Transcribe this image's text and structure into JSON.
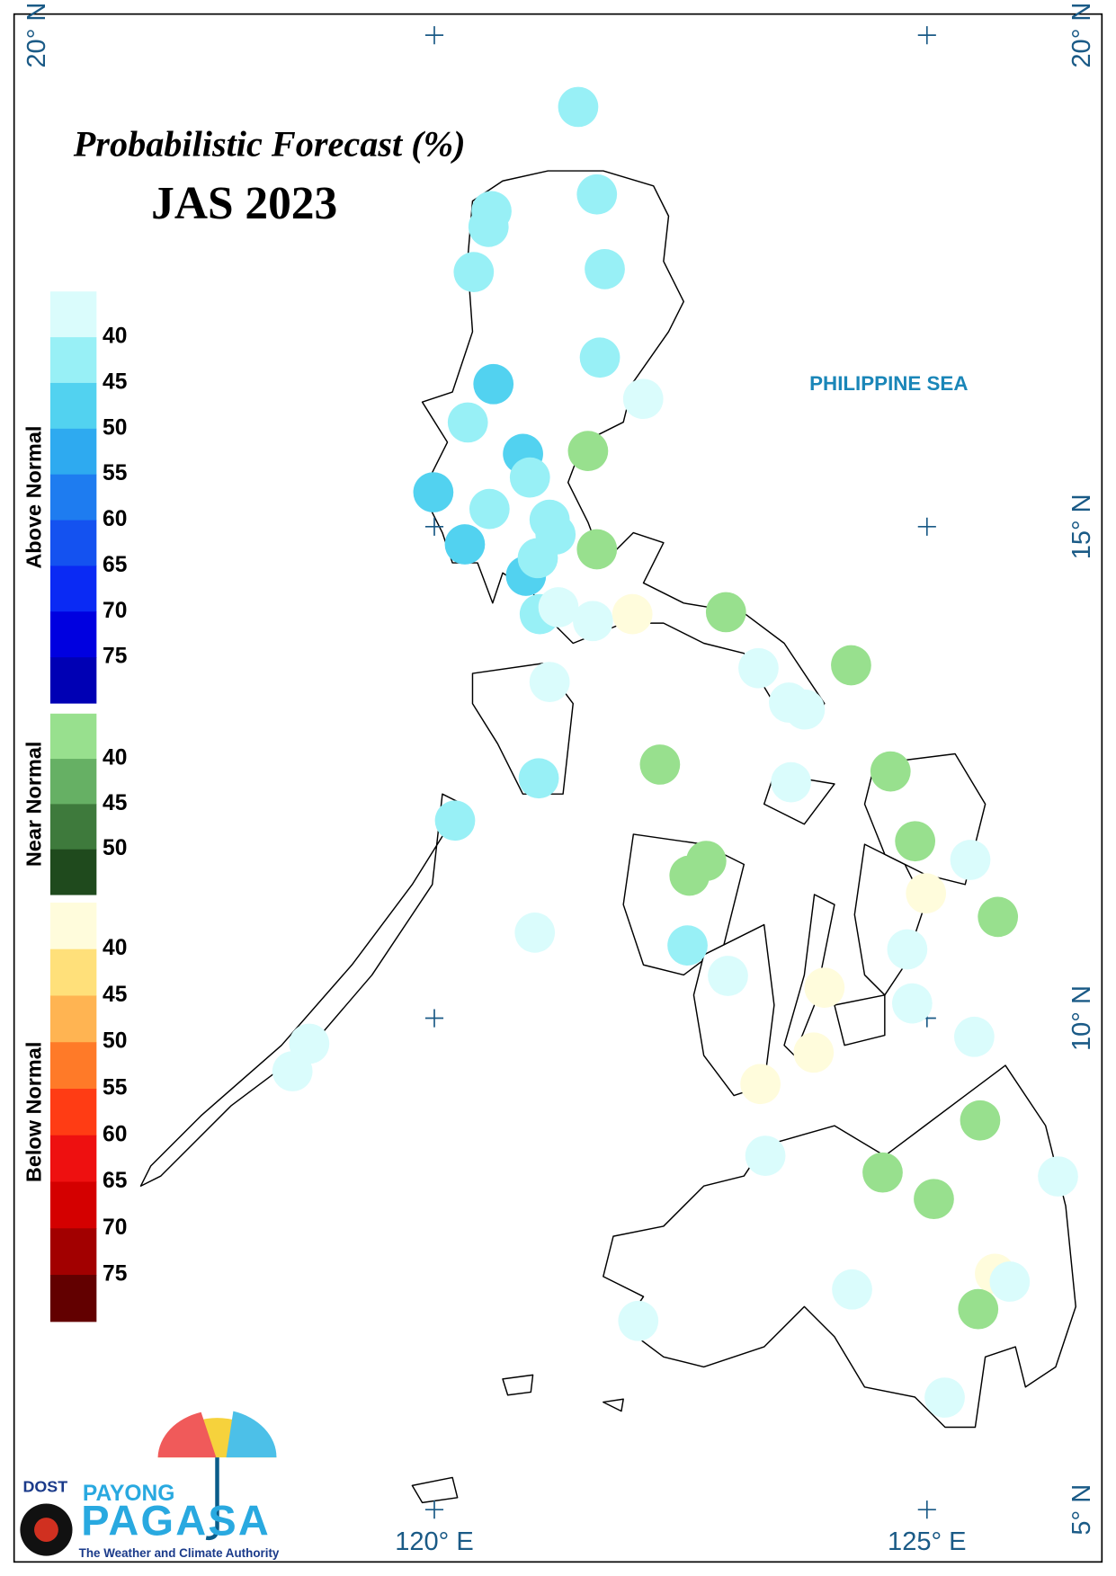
{
  "title": "Probabilistic Forecast (%)",
  "subtitle": "JAS 2023",
  "sea_label": "PHILIPPINE SEA",
  "map": {
    "lon_ticks": [
      {
        "value": 120,
        "label": "120° E"
      },
      {
        "value": 125,
        "label": "125° E"
      }
    ],
    "lat_ticks": [
      {
        "value": 20,
        "label": "20° N"
      },
      {
        "value": 15,
        "label": "15° N"
      },
      {
        "value": 10,
        "label": "10° N"
      },
      {
        "value": 5,
        "label": "5° N"
      }
    ],
    "left_lat_ticks": [
      {
        "value": 20,
        "label": "20° N"
      }
    ],
    "stations": [
      {
        "lon": 121.46,
        "lat": 19.27,
        "color": "#98f0f6"
      },
      {
        "lon": 121.65,
        "lat": 18.38,
        "color": "#98f0f6"
      },
      {
        "lon": 120.58,
        "lat": 18.21,
        "color": "#98f0f6"
      },
      {
        "lon": 120.55,
        "lat": 18.05,
        "color": "#98f0f6"
      },
      {
        "lon": 120.4,
        "lat": 17.59,
        "color": "#98f0f6"
      },
      {
        "lon": 121.73,
        "lat": 17.62,
        "color": "#98f0f6"
      },
      {
        "lon": 121.68,
        "lat": 16.72,
        "color": "#98f0f6"
      },
      {
        "lon": 120.6,
        "lat": 16.45,
        "color": "#52d2f0"
      },
      {
        "lon": 122.12,
        "lat": 16.3,
        "color": "#dafcfc"
      },
      {
        "lon": 120.34,
        "lat": 16.06,
        "color": "#98f0f6"
      },
      {
        "lon": 121.56,
        "lat": 15.77,
        "color": "#98e08e"
      },
      {
        "lon": 120.9,
        "lat": 15.74,
        "color": "#52d2f0"
      },
      {
        "lon": 120.97,
        "lat": 15.5,
        "color": "#98f0f6"
      },
      {
        "lon": 119.99,
        "lat": 15.35,
        "color": "#52d2f0"
      },
      {
        "lon": 120.56,
        "lat": 15.18,
        "color": "#98f0f6"
      },
      {
        "lon": 121.17,
        "lat": 15.07,
        "color": "#98f0f6"
      },
      {
        "lon": 121.23,
        "lat": 14.92,
        "color": "#98f0f6"
      },
      {
        "lon": 121.65,
        "lat": 14.77,
        "color": "#98e08e"
      },
      {
        "lon": 120.31,
        "lat": 14.82,
        "color": "#52d2f0"
      },
      {
        "lon": 120.93,
        "lat": 14.5,
        "color": "#52d2f0"
      },
      {
        "lon": 121.05,
        "lat": 14.68,
        "color": "#98f0f6"
      },
      {
        "lon": 121.07,
        "lat": 14.11,
        "color": "#98f0f6"
      },
      {
        "lon": 121.26,
        "lat": 14.18,
        "color": "#dafcfc"
      },
      {
        "lon": 121.61,
        "lat": 14.04,
        "color": "#dafcfc"
      },
      {
        "lon": 122.01,
        "lat": 14.11,
        "color": "#fffcdc"
      },
      {
        "lon": 122.96,
        "lat": 14.13,
        "color": "#98e08e"
      },
      {
        "lon": 124.23,
        "lat": 13.59,
        "color": "#98e08e"
      },
      {
        "lon": 123.29,
        "lat": 13.56,
        "color": "#dafcfc"
      },
      {
        "lon": 121.17,
        "lat": 13.42,
        "color": "#dafcfc"
      },
      {
        "lon": 123.6,
        "lat": 13.21,
        "color": "#dafcfc"
      },
      {
        "lon": 123.76,
        "lat": 13.14,
        "color": "#dafcfc"
      },
      {
        "lon": 122.29,
        "lat": 12.58,
        "color": "#98e08e"
      },
      {
        "lon": 124.63,
        "lat": 12.51,
        "color": "#98e08e"
      },
      {
        "lon": 121.06,
        "lat": 12.44,
        "color": "#98f0f6"
      },
      {
        "lon": 123.62,
        "lat": 12.4,
        "color": "#dafcfc"
      },
      {
        "lon": 120.21,
        "lat": 12.01,
        "color": "#98f0f6"
      },
      {
        "lon": 124.88,
        "lat": 11.8,
        "color": "#98e08e"
      },
      {
        "lon": 122.76,
        "lat": 11.6,
        "color": "#98e08e"
      },
      {
        "lon": 122.59,
        "lat": 11.45,
        "color": "#98e08e"
      },
      {
        "lon": 125.44,
        "lat": 11.61,
        "color": "#dafcfc"
      },
      {
        "lon": 124.99,
        "lat": 11.27,
        "color": "#fffcdc"
      },
      {
        "lon": 125.72,
        "lat": 11.03,
        "color": "#98e08e"
      },
      {
        "lon": 121.02,
        "lat": 10.87,
        "color": "#dafcfc"
      },
      {
        "lon": 122.57,
        "lat": 10.74,
        "color": "#98f0f6"
      },
      {
        "lon": 124.8,
        "lat": 10.7,
        "color": "#dafcfc"
      },
      {
        "lon": 122.98,
        "lat": 10.43,
        "color": "#dafcfc"
      },
      {
        "lon": 123.96,
        "lat": 10.31,
        "color": "#fffcdc"
      },
      {
        "lon": 124.85,
        "lat": 10.15,
        "color": "#dafcfc"
      },
      {
        "lon": 118.73,
        "lat": 9.74,
        "color": "#dafcfc"
      },
      {
        "lon": 118.56,
        "lat": 9.46,
        "color": "#dafcfc"
      },
      {
        "lon": 125.48,
        "lat": 9.81,
        "color": "#dafcfc"
      },
      {
        "lon": 123.85,
        "lat": 9.65,
        "color": "#fffcdc"
      },
      {
        "lon": 123.31,
        "lat": 9.33,
        "color": "#fffcdc"
      },
      {
        "lon": 125.54,
        "lat": 8.96,
        "color": "#98e08e"
      },
      {
        "lon": 123.36,
        "lat": 8.6,
        "color": "#dafcfc"
      },
      {
        "lon": 124.55,
        "lat": 8.43,
        "color": "#98e08e"
      },
      {
        "lon": 125.07,
        "lat": 8.16,
        "color": "#98e08e"
      },
      {
        "lon": 126.33,
        "lat": 8.39,
        "color": "#dafcfc"
      },
      {
        "lon": 124.24,
        "lat": 7.24,
        "color": "#dafcfc"
      },
      {
        "lon": 125.69,
        "lat": 7.4,
        "color": "#fffcdc"
      },
      {
        "lon": 125.84,
        "lat": 7.32,
        "color": "#dafcfc"
      },
      {
        "lon": 125.52,
        "lat": 7.04,
        "color": "#98e08e"
      },
      {
        "lon": 122.07,
        "lat": 6.92,
        "color": "#dafcfc"
      },
      {
        "lon": 125.18,
        "lat": 6.14,
        "color": "#dafcfc"
      }
    ]
  },
  "legend": {
    "sections": [
      {
        "label": "Above Normal",
        "colors": [
          "#dafcfc",
          "#98f0f6",
          "#52d2f0",
          "#2eaaf0",
          "#1e7cf0",
          "#1452f0",
          "#0a2af4",
          "#0000e0",
          "#0000b4"
        ],
        "ticks": [
          40,
          45,
          50,
          55,
          60,
          65,
          70,
          75
        ]
      },
      {
        "label": "Near Normal",
        "colors": [
          "#98e08e",
          "#66b064",
          "#3e7a3c",
          "#1f4a1d"
        ],
        "ticks": [
          40,
          45,
          50
        ]
      },
      {
        "label": "Below Normal",
        "colors": [
          "#fffcdc",
          "#ffe07a",
          "#ffb452",
          "#ff7a28",
          "#ff3c14",
          "#ee1010",
          "#d40000",
          "#a20000",
          "#620000"
        ],
        "ticks": [
          40,
          45,
          50,
          55,
          60,
          65,
          70,
          75
        ]
      }
    ]
  },
  "logo": {
    "agency": "DOST",
    "brand_top": "PAYONG",
    "brand": "PAGASA",
    "tagline": "The Weather and Climate Authority"
  }
}
